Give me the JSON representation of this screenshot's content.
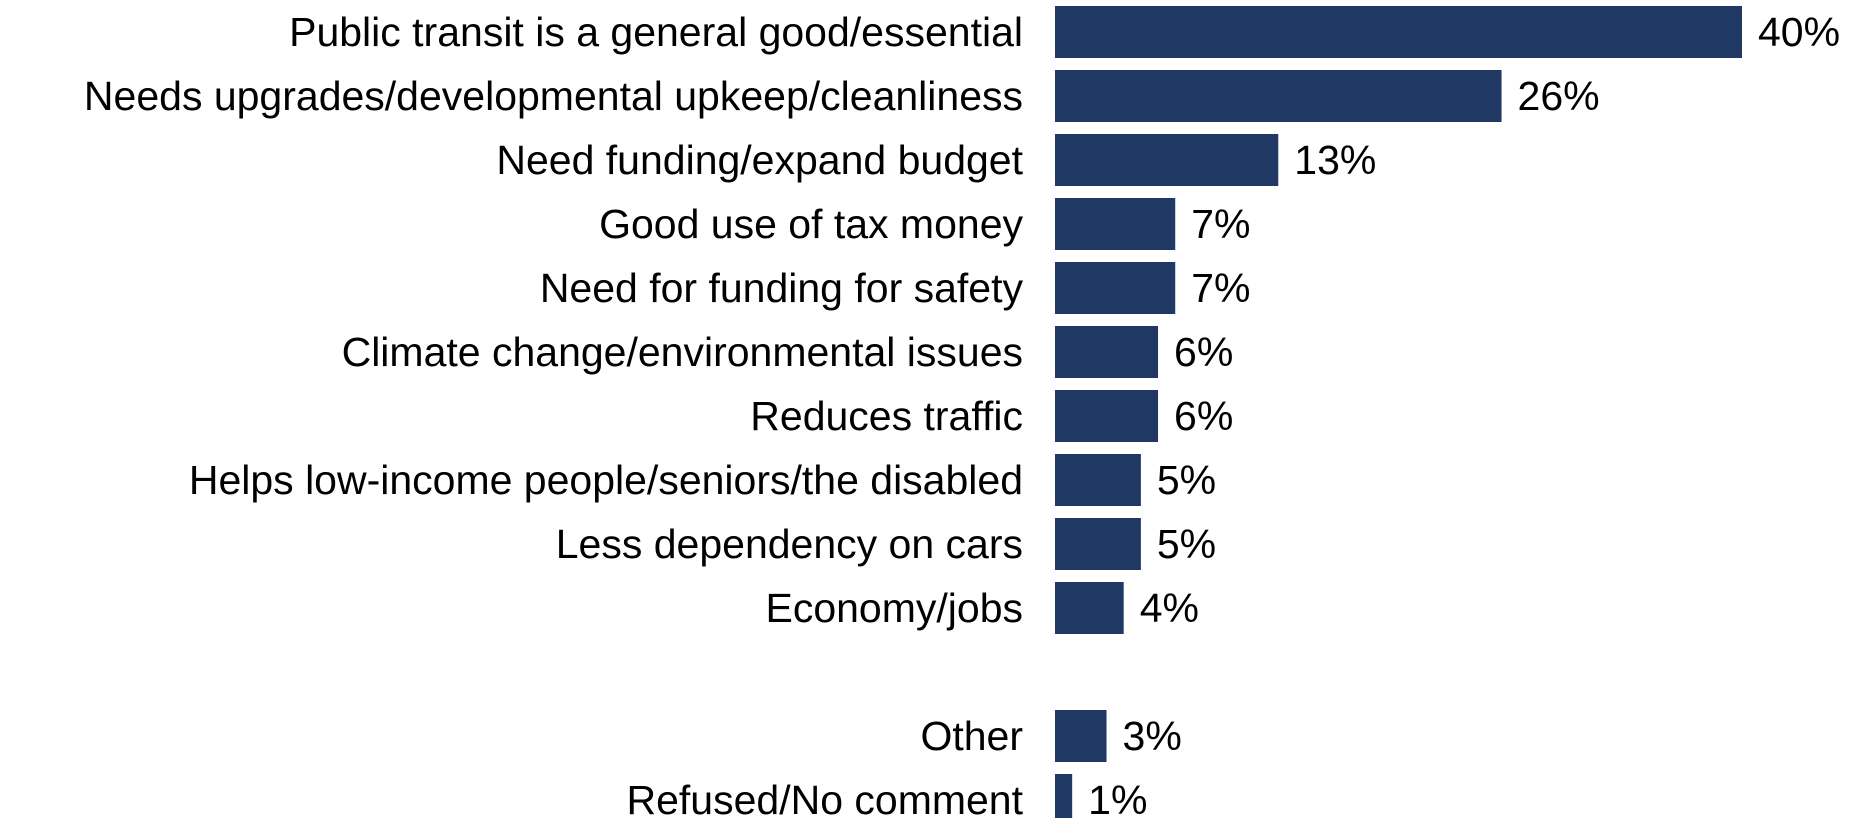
{
  "chart_data": {
    "type": "bar",
    "orientation": "horizontal",
    "categories": [
      "Public transit is a general good/essential",
      "Needs upgrades/developmental upkeep/cleanliness",
      "Need funding/expand budget",
      "Good use of tax money",
      "Need for funding for safety",
      "Climate change/environmental issues",
      "Reduces traffic",
      "Helps low-income people/seniors/the disabled",
      "Less dependency on cars",
      "Economy/jobs",
      "Other",
      "Refused/No comment"
    ],
    "values": [
      40,
      26,
      13,
      7,
      7,
      6,
      6,
      5,
      5,
      4,
      3,
      1
    ],
    "value_labels": [
      "40%",
      "26%",
      "13%",
      "7%",
      "7%",
      "6%",
      "6%",
      "5%",
      "5%",
      "4%",
      "3%",
      "1%"
    ],
    "unit": "%",
    "xlim": [
      0,
      40
    ],
    "grid": false,
    "legend": "none",
    "title": "",
    "xlabel": "",
    "ylabel": "",
    "bar_color": "#1f3864"
  }
}
